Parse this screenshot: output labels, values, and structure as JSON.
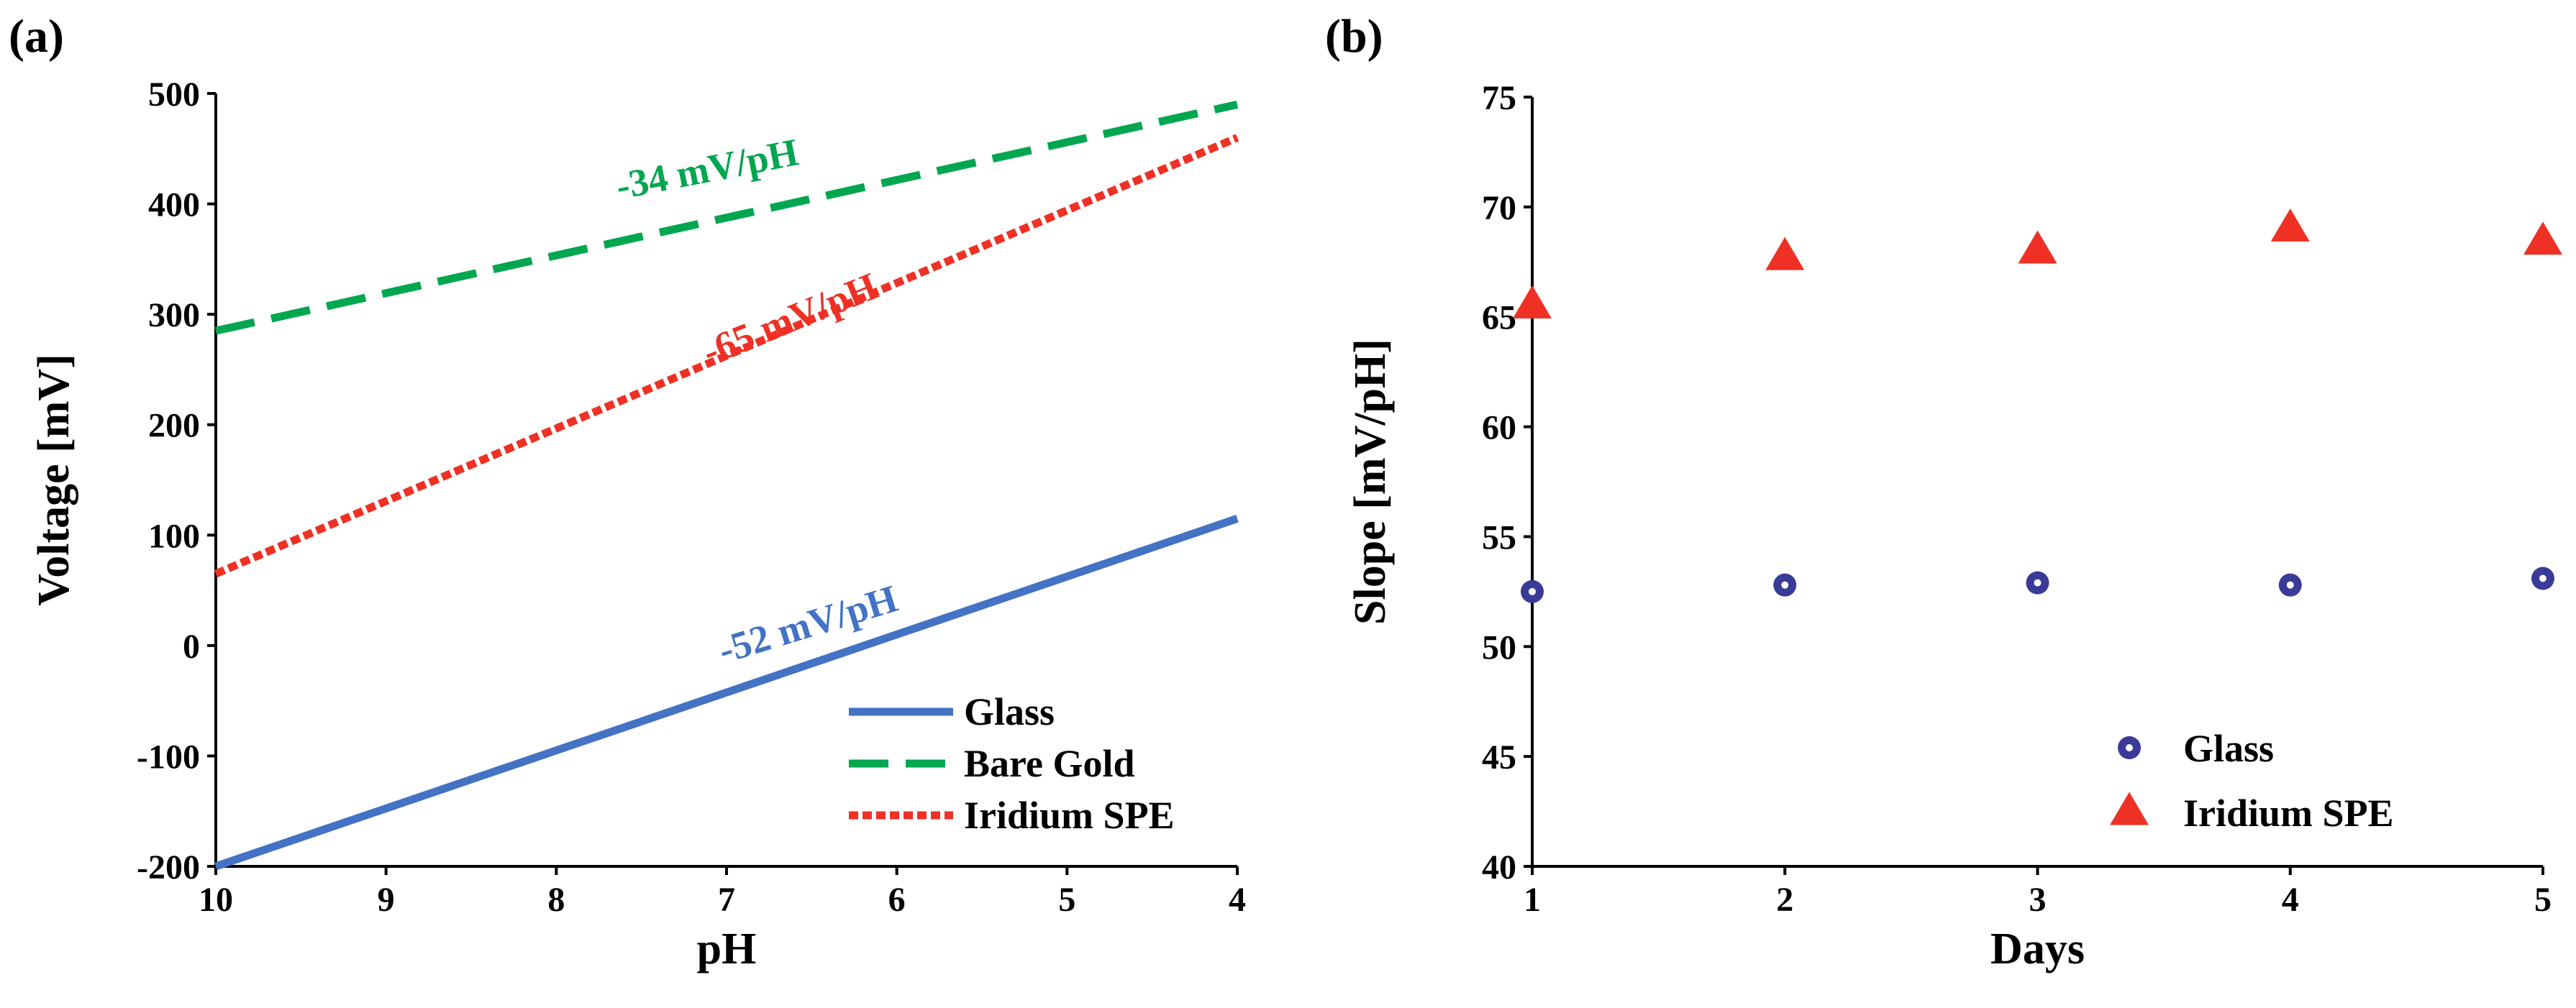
{
  "figure": {
    "panel_a_label": "(a)",
    "panel_b_label": "(b)"
  },
  "chart_data": [
    {
      "type": "line",
      "panel": "(a)",
      "xlabel": "pH",
      "ylabel": "Voltage [mV]",
      "xlim": [
        10,
        4
      ],
      "ylim": [
        -200,
        500
      ],
      "xticks": [
        10,
        9,
        8,
        7,
        6,
        5,
        4
      ],
      "yticks": [
        -200,
        -100,
        0,
        100,
        200,
        300,
        400,
        500
      ],
      "legend_position": "bottom-right",
      "series": [
        {
          "name": "Glass",
          "style": "solid",
          "color": "#4472C4",
          "x": [
            10,
            4
          ],
          "y": [
            -200,
            115
          ]
        },
        {
          "name": "Bare Gold",
          "style": "dashed",
          "color": "#00A650",
          "x": [
            10,
            4
          ],
          "y": [
            285,
            490
          ]
        },
        {
          "name": "Iridium SPE",
          "style": "dotted",
          "color": "#EE3124",
          "x": [
            10,
            4
          ],
          "y": [
            65,
            460
          ]
        }
      ],
      "annotations": [
        {
          "text": "-34 mV/pH",
          "color": "#00A650",
          "x": 7.1,
          "y": 420,
          "angle": -11
        },
        {
          "text": "-65 mV/pH",
          "color": "#EE3124",
          "x": 6.6,
          "y": 285,
          "angle": -22
        },
        {
          "text": "-52 mV/pH",
          "color": "#4472C4",
          "x": 6.5,
          "y": 8,
          "angle": -17
        }
      ]
    },
    {
      "type": "scatter",
      "panel": "(b)",
      "xlabel": "Days",
      "ylabel": "Slope [mV/pH]",
      "xlim": [
        1,
        5
      ],
      "ylim": [
        40,
        75
      ],
      "xticks": [
        1,
        2,
        3,
        4,
        5
      ],
      "yticks": [
        40,
        45,
        50,
        55,
        60,
        65,
        70,
        75
      ],
      "legend_position": "bottom-center",
      "series": [
        {
          "name": "Glass",
          "marker": "circle",
          "color": "#3A3A99",
          "x": [
            1,
            2,
            3,
            4,
            5
          ],
          "y": [
            52.5,
            52.8,
            52.9,
            52.8,
            53.1
          ]
        },
        {
          "name": "Iridium SPE",
          "marker": "triangle",
          "color": "#EE3124",
          "x": [
            1,
            2,
            3,
            4,
            5
          ],
          "y": [
            65.5,
            67.7,
            68.0,
            69.0,
            68.4
          ]
        }
      ]
    }
  ]
}
